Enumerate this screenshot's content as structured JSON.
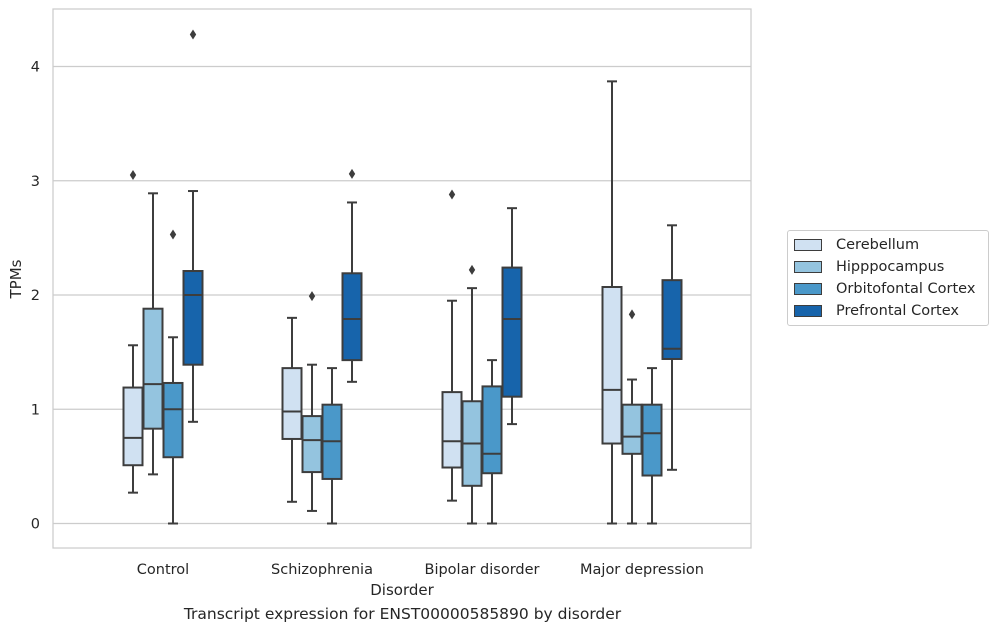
{
  "caption": "Transcript expression for ENST00000585890 by disorder",
  "chart_data": {
    "type": "boxplot",
    "xlabel": "Disorder",
    "ylabel": "TPMs",
    "ylim": [
      -0.2,
      4.5
    ],
    "yticks": [
      0,
      1,
      2,
      3,
      4
    ],
    "grid": "horizontal",
    "legend_position": "right",
    "categories": [
      "Control",
      "Schizophrenia",
      "Bipolar disorder",
      "Major depression"
    ],
    "series": [
      {
        "name": "Cerebellum",
        "color": "#d0e1f2",
        "boxes": [
          {
            "whislo": 0.27,
            "q1": 0.51,
            "med": 0.75,
            "q3": 1.19,
            "whishi": 1.56,
            "fliers": [
              3.05
            ]
          },
          {
            "whislo": 0.19,
            "q1": 0.74,
            "med": 0.98,
            "q3": 1.36,
            "whishi": 1.8,
            "fliers": []
          },
          {
            "whislo": 0.2,
            "q1": 0.49,
            "med": 0.72,
            "q3": 1.15,
            "whishi": 1.95,
            "fliers": [
              2.88
            ]
          },
          {
            "whislo": 0.0,
            "q1": 0.7,
            "med": 1.17,
            "q3": 2.07,
            "whishi": 3.87,
            "fliers": []
          }
        ]
      },
      {
        "name": "Hipppocampus",
        "color": "#94c4df",
        "boxes": [
          {
            "whislo": 0.43,
            "q1": 0.83,
            "med": 1.22,
            "q3": 1.88,
            "whishi": 2.89,
            "fliers": []
          },
          {
            "whislo": 0.11,
            "q1": 0.45,
            "med": 0.73,
            "q3": 0.94,
            "whishi": 1.39,
            "fliers": [
              1.99
            ]
          },
          {
            "whislo": 0.0,
            "q1": 0.33,
            "med": 0.7,
            "q3": 1.07,
            "whishi": 2.06,
            "fliers": [
              2.22
            ]
          },
          {
            "whislo": 0.0,
            "q1": 0.61,
            "med": 0.76,
            "q3": 1.04,
            "whishi": 1.26,
            "fliers": [
              1.83
            ]
          }
        ]
      },
      {
        "name": "Orbitofontal Cortex",
        "color": "#4a98c9",
        "boxes": [
          {
            "whislo": 0.0,
            "q1": 0.58,
            "med": 1.0,
            "q3": 1.23,
            "whishi": 1.63,
            "fliers": [
              2.53
            ]
          },
          {
            "whislo": 0.0,
            "q1": 0.39,
            "med": 0.72,
            "q3": 1.04,
            "whishi": 1.36,
            "fliers": []
          },
          {
            "whislo": 0.0,
            "q1": 0.44,
            "med": 0.61,
            "q3": 1.2,
            "whishi": 1.43,
            "fliers": []
          },
          {
            "whislo": 0.0,
            "q1": 0.42,
            "med": 0.79,
            "q3": 1.04,
            "whishi": 1.36,
            "fliers": []
          }
        ]
      },
      {
        "name": "Prefrontal Cortex",
        "color": "#1764ab",
        "boxes": [
          {
            "whislo": 0.89,
            "q1": 1.39,
            "med": 2.0,
            "q3": 2.21,
            "whishi": 2.91,
            "fliers": [
              4.28
            ]
          },
          {
            "whislo": 1.24,
            "q1": 1.43,
            "med": 1.79,
            "q3": 2.19,
            "whishi": 2.81,
            "fliers": [
              3.06
            ]
          },
          {
            "whislo": 0.87,
            "q1": 1.11,
            "med": 1.79,
            "q3": 2.24,
            "whishi": 2.76,
            "fliers": []
          },
          {
            "whislo": 0.47,
            "q1": 1.44,
            "med": 1.53,
            "q3": 2.13,
            "whishi": 2.61,
            "fliers": []
          }
        ]
      }
    ]
  }
}
